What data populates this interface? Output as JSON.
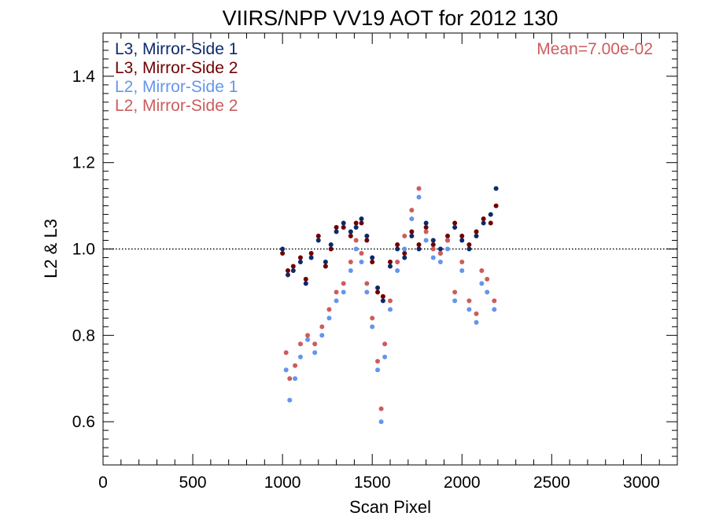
{
  "chart_data": {
    "type": "scatter",
    "title": "VIIRS/NPP VV19 AOT for 2012 130",
    "xlabel": "Scan Pixel",
    "ylabel": "L2 & L3",
    "xlim": [
      0,
      3200
    ],
    "ylim": [
      0.5,
      1.5
    ],
    "x_ticks": [
      0,
      500,
      1000,
      1500,
      2000,
      2500,
      3000
    ],
    "x_tick_labels": [
      "0",
      "500",
      "1000",
      "1500",
      "2000",
      "2500",
      "3000"
    ],
    "y_ticks": [
      0.6,
      0.8,
      1.0,
      1.2,
      1.4
    ],
    "y_tick_labels": [
      "0.6",
      "0.8",
      "1.0",
      "1.2",
      "1.4"
    ],
    "reference_line": 1.0,
    "grid": false,
    "legend_position": "top-left",
    "annotation": "Mean=7.00e-02",
    "annotation_color": "#cd5c5c",
    "series": [
      {
        "name": "L3, Mirror-Side 1",
        "color": "#0b2a6b",
        "x": [
          1000,
          1030,
          1060,
          1100,
          1130,
          1160,
          1200,
          1240,
          1270,
          1300,
          1340,
          1380,
          1410,
          1440,
          1470,
          1500,
          1530,
          1560,
          1600,
          1640,
          1680,
          1720,
          1760,
          1800,
          1840,
          1880,
          1920,
          1960,
          2000,
          2040,
          2080,
          2120,
          2160,
          2190
        ],
        "y": [
          1.0,
          0.94,
          0.95,
          0.97,
          0.92,
          0.98,
          1.02,
          0.97,
          1.01,
          1.04,
          1.06,
          1.04,
          1.05,
          1.07,
          1.03,
          0.98,
          0.91,
          0.88,
          0.96,
          1.0,
          0.98,
          1.03,
          1.0,
          1.06,
          1.02,
          1.0,
          1.02,
          1.05,
          1.02,
          1.0,
          1.03,
          1.06,
          1.08,
          1.14
        ]
      },
      {
        "name": "L3, Mirror-Side 2",
        "color": "#700000",
        "x": [
          1000,
          1030,
          1060,
          1100,
          1130,
          1160,
          1200,
          1240,
          1270,
          1300,
          1340,
          1380,
          1410,
          1440,
          1470,
          1500,
          1530,
          1560,
          1600,
          1640,
          1680,
          1720,
          1760,
          1800,
          1840,
          1880,
          1920,
          1960,
          2000,
          2040,
          2080,
          2120,
          2160,
          2190
        ],
        "y": [
          0.99,
          0.95,
          0.96,
          0.98,
          0.93,
          0.99,
          1.03,
          0.96,
          1.0,
          1.05,
          1.05,
          1.03,
          1.06,
          1.06,
          1.02,
          0.97,
          0.9,
          0.89,
          0.97,
          1.01,
          0.99,
          1.04,
          1.01,
          1.05,
          1.01,
          0.99,
          1.03,
          1.06,
          1.03,
          1.01,
          1.04,
          1.07,
          1.06,
          1.1
        ]
      },
      {
        "name": "L2, Mirror-Side 1",
        "color": "#6495ed",
        "x": [
          1020,
          1040,
          1070,
          1100,
          1140,
          1180,
          1220,
          1260,
          1300,
          1340,
          1380,
          1410,
          1440,
          1470,
          1500,
          1530,
          1550,
          1570,
          1600,
          1640,
          1680,
          1720,
          1760,
          1800,
          1840,
          1880,
          1920,
          1960,
          2000,
          2040,
          2080,
          2110,
          2140,
          2180
        ],
        "y": [
          0.72,
          0.65,
          0.7,
          0.75,
          0.79,
          0.76,
          0.8,
          0.84,
          0.88,
          0.9,
          0.95,
          1.0,
          0.97,
          0.9,
          0.82,
          0.72,
          0.6,
          0.75,
          0.86,
          0.95,
          1.0,
          1.07,
          1.12,
          1.02,
          0.98,
          0.97,
          1.0,
          0.88,
          0.95,
          0.86,
          0.83,
          0.92,
          0.9,
          0.86
        ]
      },
      {
        "name": "L2, Mirror-Side 2",
        "color": "#cd5c5c",
        "x": [
          1020,
          1040,
          1070,
          1100,
          1140,
          1180,
          1220,
          1260,
          1300,
          1340,
          1380,
          1410,
          1440,
          1470,
          1500,
          1530,
          1550,
          1570,
          1600,
          1640,
          1680,
          1720,
          1760,
          1800,
          1840,
          1880,
          1920,
          1960,
          2000,
          2040,
          2080,
          2110,
          2140,
          2180
        ],
        "y": [
          0.76,
          0.7,
          0.73,
          0.78,
          0.8,
          0.78,
          0.82,
          0.86,
          0.9,
          0.92,
          0.97,
          1.02,
          0.99,
          0.92,
          0.84,
          0.74,
          0.63,
          0.78,
          0.88,
          0.97,
          1.03,
          1.09,
          1.14,
          1.04,
          1.0,
          0.99,
          1.02,
          0.9,
          0.97,
          0.88,
          0.85,
          0.95,
          0.93,
          0.88
        ]
      }
    ]
  }
}
